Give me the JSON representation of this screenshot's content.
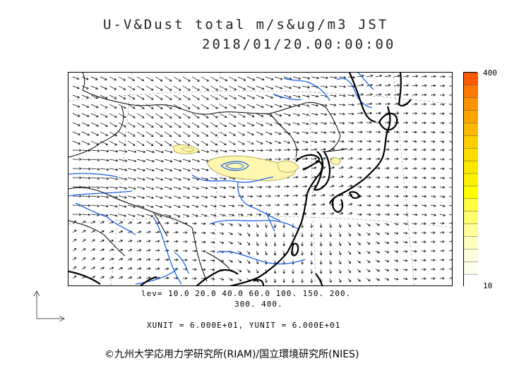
{
  "title": {
    "line1": "U-V&Dust total m/s&ug/m3 JST",
    "line2": "2018/01/20.00:00:00"
  },
  "colorbar": {
    "max_label": "400",
    "min_label": "10",
    "colors": [
      "#ff5a00",
      "#ff7a00",
      "#ff9200",
      "#ffa500",
      "#ffb800",
      "#ffcc00",
      "#ffdd00",
      "#ffe800",
      "#fff200",
      "#ffff00",
      "#ffff40",
      "#ffff70",
      "#ffff9a",
      "#ffffbf",
      "#ffffdd",
      "#ffffee",
      "#ffffff"
    ]
  },
  "levels": {
    "line1": "lev= 10.0 20.0 40.0 60.0 100. 150. 200.",
    "line2": "300. 400."
  },
  "units": "XUNIT = 6.000E+01, YUNIT = 6.000E+01",
  "copyright": "©九州大学応用力学研究所(RIAM)/国立環境研究所(NIES)",
  "colors": {
    "coast": "#000000",
    "rivers": "#1e64e6",
    "borders": "#000000",
    "wind_vectors": "#000000",
    "dust_fill": "#fff7b0",
    "dust_contour_outer": "#b8a85a",
    "dust_contour_inner": "#1e64e6"
  },
  "icons": {
    "reference_arrow": "axis-arrow-icon"
  }
}
